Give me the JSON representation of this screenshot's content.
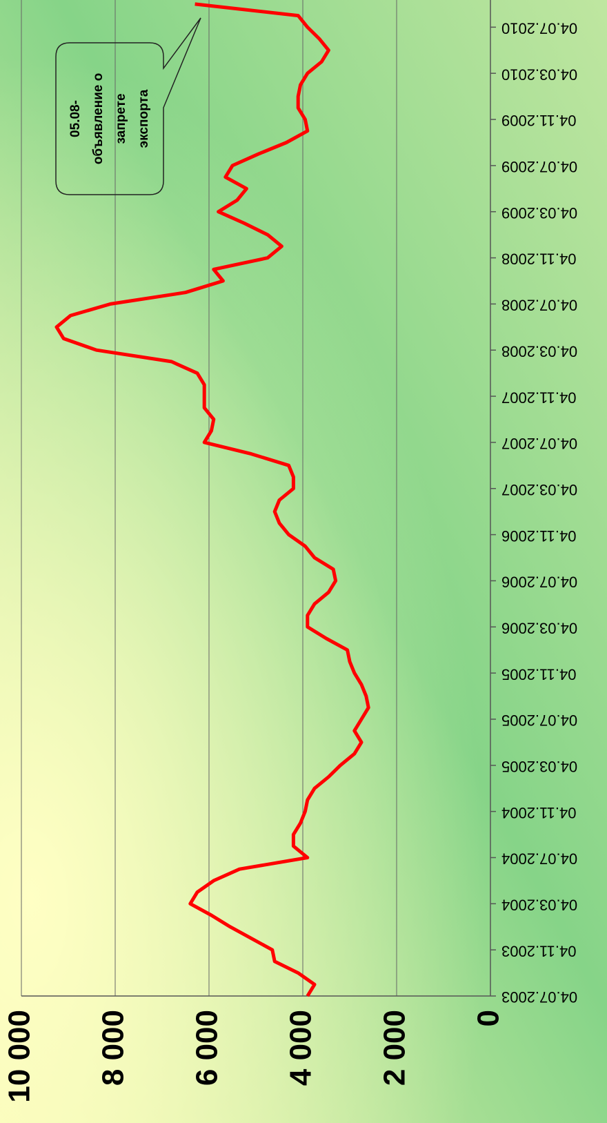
{
  "chart_data": {
    "type": "line",
    "x": [
      "04.07.2003",
      "04.08.2003",
      "04.09.2003",
      "04.10.2003",
      "04.11.2003",
      "04.12.2003",
      "04.01.2004",
      "04.02.2004",
      "04.03.2004",
      "04.04.2004",
      "04.05.2004",
      "04.06.2004",
      "04.07.2004",
      "04.08.2004",
      "04.09.2004",
      "04.10.2004",
      "04.11.2004",
      "04.12.2004",
      "04.01.2005",
      "04.02.2005",
      "04.03.2005",
      "04.04.2005",
      "04.05.2005",
      "04.06.2005",
      "04.07.2005",
      "04.08.2005",
      "04.09.2005",
      "04.10.2005",
      "04.11.2005",
      "04.12.2005",
      "04.01.2006",
      "04.02.2006",
      "04.03.2006",
      "04.04.2006",
      "04.05.2006",
      "04.06.2006",
      "04.07.2006",
      "04.08.2006",
      "04.09.2006",
      "04.10.2006",
      "04.11.2006",
      "04.12.2006",
      "04.01.2007",
      "04.02.2007",
      "04.03.2007",
      "04.04.2007",
      "04.05.2007",
      "04.06.2007",
      "04.07.2007",
      "04.08.2007",
      "04.09.2007",
      "04.10.2007",
      "04.11.2007",
      "04.12.2007",
      "04.01.2008",
      "04.02.2008",
      "04.03.2008",
      "04.04.2008",
      "04.05.2008",
      "04.06.2008",
      "04.07.2008",
      "04.08.2008",
      "04.09.2008",
      "04.10.2008",
      "04.11.2008",
      "04.12.2008",
      "04.01.2009",
      "04.02.2009",
      "04.03.2009",
      "04.04.2009",
      "04.05.2009",
      "04.06.2009",
      "04.07.2009",
      "04.08.2009",
      "04.09.2009",
      "04.10.2009",
      "04.11.2009",
      "04.12.2009",
      "04.01.2010",
      "04.02.2010",
      "04.03.2010",
      "04.04.2010",
      "04.05.2010",
      "04.06.2010",
      "04.07.2010",
      "04.08.2010",
      "04.09.2010"
    ],
    "series": [
      {
        "color": "#ff0000",
        "values": [
          3900,
          3750,
          4100,
          4600,
          4650,
          5100,
          5550,
          5950,
          6400,
          6250,
          5900,
          5350,
          3900,
          4200,
          4200,
          4050,
          3950,
          3900,
          3750,
          3450,
          3200,
          2900,
          2750,
          2900,
          2750,
          2600,
          2650,
          2750,
          2900,
          3000,
          3050,
          3500,
          3900,
          3900,
          3750,
          3450,
          3300,
          3350,
          3750,
          3950,
          4300,
          4500,
          4600,
          4500,
          4200,
          4200,
          4300,
          5100,
          6100,
          5950,
          5900,
          6100,
          6100,
          6100,
          6250,
          6800,
          8400,
          9100,
          9250,
          8950,
          8100,
          6500,
          5700,
          5900,
          4750,
          4450,
          4750,
          5250,
          5800,
          5400,
          5200,
          5650,
          5500,
          4950,
          4350,
          3900,
          3950,
          4100,
          4100,
          4050,
          3900,
          3600,
          3450,
          3650,
          3900,
          4100,
          6300
        ]
      }
    ],
    "xticks": [
      "04.07.2003",
      "04.11.2003",
      "04.03.2004",
      "04.07.2004",
      "04.11.2004",
      "04.03.2005",
      "04.07.2005",
      "04.11.2005",
      "04.03.2006",
      "04.07.2006",
      "04.11.2006",
      "04.03.2007",
      "04.07.2007",
      "04.11.2007",
      "04.03.2008",
      "04.07.2008",
      "04.11.2008",
      "04.03.2009",
      "04.07.2009",
      "04.11.2009",
      "04.03.2010",
      "04.07.2010"
    ],
    "ylim": [
      0,
      10000
    ],
    "yticks": [
      0,
      {
        "value": 2000,
        "label": "2 000"
      },
      {
        "value": 4000,
        "label": "4 000"
      },
      {
        "value": 6000,
        "label": "6 000"
      },
      {
        "value": 8000,
        "label": "8 000"
      },
      {
        "value": 10000,
        "label": "10 000"
      }
    ],
    "grid": true,
    "rotation": -90,
    "annotation": [
      "05.08-",
      "объявление о",
      "запрете",
      "экспорта"
    ]
  }
}
